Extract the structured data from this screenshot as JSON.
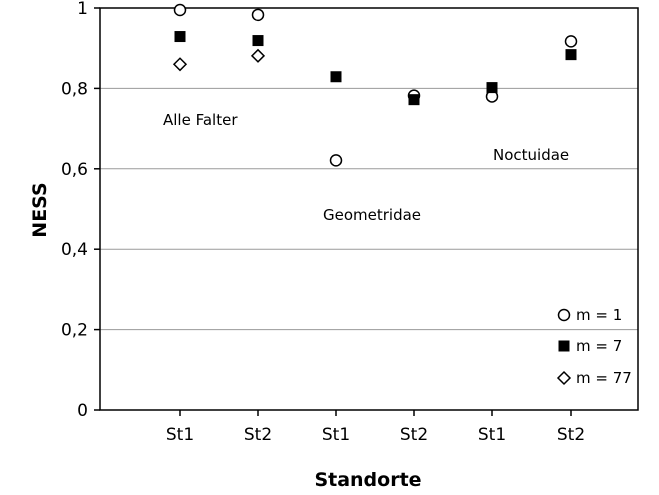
{
  "chart_data": {
    "type": "scatter",
    "xlabel": "Standorte",
    "ylabel": "NESS",
    "ylim": [
      0,
      1
    ],
    "yticks": [
      "0",
      "0,2",
      "0,4",
      "0,6",
      "0,8",
      "1"
    ],
    "yticks_values": [
      0,
      0.2,
      0.4,
      0.6,
      0.8,
      1.0
    ],
    "categories": [
      "St1",
      "St2",
      "St1",
      "St2",
      "St1",
      "St2"
    ],
    "grid": "horizontal",
    "legend_position": "bottom-right",
    "series": [
      {
        "name": "m = 1",
        "marker": "circle-open",
        "values": [
          0.995,
          0.983,
          0.621,
          0.782,
          0.78,
          0.917
        ]
      },
      {
        "name": "m = 7",
        "marker": "square-filled",
        "values": [
          0.929,
          0.919,
          0.829,
          0.772,
          0.802,
          0.884
        ]
      },
      {
        "name": "m = 77",
        "marker": "diamond-open",
        "values": [
          0.86,
          0.881,
          null,
          null,
          null,
          null
        ]
      }
    ],
    "annotations": [
      {
        "text": "Alle Falter"
      },
      {
        "text": "Geometridae"
      },
      {
        "text": "Noctuidae"
      }
    ]
  }
}
